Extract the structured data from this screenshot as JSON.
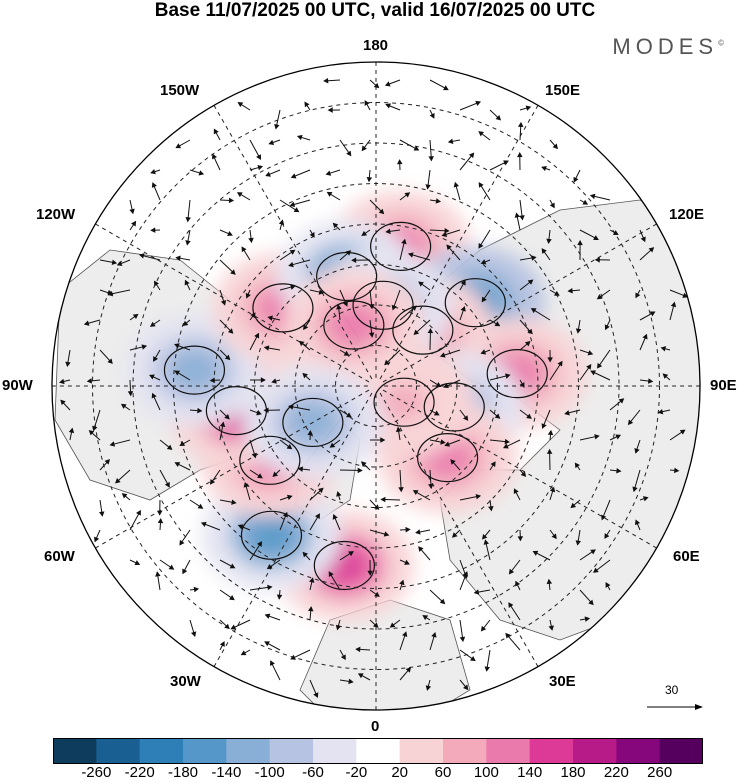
{
  "title": "Base 11/07/2025 00 UTC, valid 16/07/2025 00 UTC",
  "brand": "MODES",
  "longitude_labels": {
    "top": "180",
    "upper_left": "150W",
    "upper_right": "150E",
    "left_upper": "120W",
    "right_upper": "120E",
    "left": "90W",
    "right": "90E",
    "left_lower": "60W",
    "right_lower": "60E",
    "lower_left": "30W",
    "lower_right": "30E",
    "bottom": "0"
  },
  "vector_scale_label": "30",
  "colorbar": {
    "tick_labels": [
      "-260",
      "-220",
      "-180",
      "-140",
      "-100",
      "-60",
      "-20",
      "20",
      "60",
      "100",
      "140",
      "180",
      "220",
      "260"
    ],
    "colors": [
      "#0d3c5c",
      "#1a5f91",
      "#2e7fb8",
      "#5597c8",
      "#8aafd6",
      "#b7c3e2",
      "#e3e3f1",
      "#ffffff",
      "#f8d3d5",
      "#f3abbc",
      "#eb7aac",
      "#dc3a96",
      "#b61b88",
      "#86077b",
      "#55005e"
    ]
  },
  "anomaly_centers": [
    {
      "lon": 170,
      "lat": 55,
      "value": 160
    },
    {
      "lon": 130,
      "lat": 58,
      "value": -180
    },
    {
      "lon": 95,
      "lat": 55,
      "value": 130
    },
    {
      "lon": 140,
      "lat": 72,
      "value": 110
    },
    {
      "lon": 75,
      "lat": 70,
      "value": -140
    },
    {
      "lon": 45,
      "lat": 65,
      "value": 150
    },
    {
      "lon": -10,
      "lat": 45,
      "value": 170
    },
    {
      "lon": -35,
      "lat": 45,
      "value": -170
    },
    {
      "lon": -55,
      "lat": 58,
      "value": 120
    },
    {
      "lon": -80,
      "lat": 55,
      "value": 170
    },
    {
      "lon": -95,
      "lat": 45,
      "value": -150
    },
    {
      "lon": -130,
      "lat": 60,
      "value": 150
    },
    {
      "lon": -165,
      "lat": 62,
      "value": -170
    },
    {
      "lon": 175,
      "lat": 70,
      "value": -110
    },
    {
      "lon": -160,
      "lat": 74,
      "value": 150
    },
    {
      "lon": 60,
      "lat": 82,
      "value": 80
    },
    {
      "lon": -60,
      "lat": 72,
      "value": -120
    }
  ]
}
